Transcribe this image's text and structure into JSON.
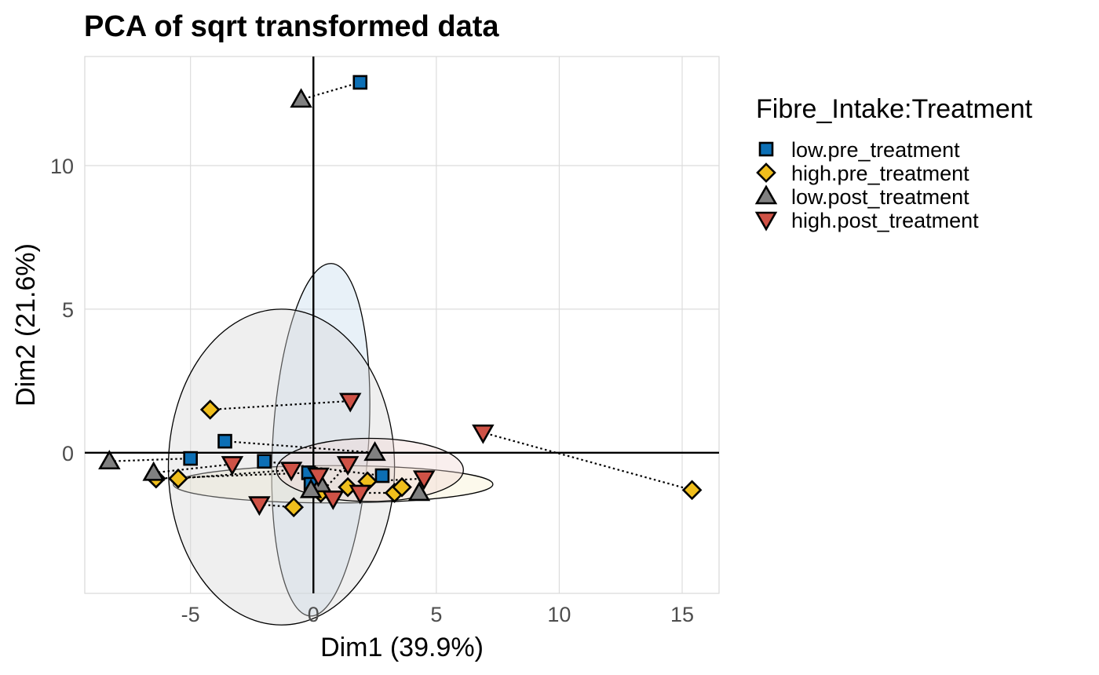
{
  "chart_data": {
    "type": "scatter",
    "title": "PCA of sqrt transformed data",
    "xlabel": "Dim1 (39.9%)",
    "ylabel": "Dim2 (21.6%)",
    "xlim": [
      -9.3,
      16.5
    ],
    "ylim": [
      -4.9,
      13.8
    ],
    "xticks": [
      -5,
      0,
      5,
      10,
      15
    ],
    "yticks": [
      0,
      5,
      10
    ],
    "xtick_labels": [
      "-5",
      "0",
      "5",
      "10",
      "15"
    ],
    "ytick_labels": [
      "0",
      "5",
      "10"
    ],
    "grid": true,
    "legend": {
      "title": "Fibre_Intake:Treatment",
      "position": "right"
    },
    "series": [
      {
        "name": "low.pre_treatment",
        "shape": "square",
        "color": "#0c6fb5",
        "ellipse": {
          "cx": 0.3,
          "cy": 0.45,
          "rx": 1.95,
          "ry": 6.15,
          "angle": 3.5
        },
        "points": [
          [
            1.9,
            12.9
          ],
          [
            -3.6,
            0.4
          ],
          [
            -5.0,
            -0.2
          ],
          [
            -2.0,
            -0.3
          ],
          [
            -0.2,
            -0.7
          ],
          [
            -0.1,
            -1.1
          ],
          [
            2.8,
            -0.8
          ]
        ]
      },
      {
        "name": "high.pre_treatment",
        "shape": "diamond",
        "color": "#f0be1c",
        "ellipse": {
          "cx": 0.8,
          "cy": -1.1,
          "rx": 6.5,
          "ry": 0.65,
          "angle": 0
        },
        "points": [
          [
            -4.2,
            1.5
          ],
          [
            -5.5,
            -0.9
          ],
          [
            -6.4,
            -0.9
          ],
          [
            -0.8,
            -1.9
          ],
          [
            0.3,
            -1.4
          ],
          [
            1.4,
            -1.2
          ],
          [
            2.2,
            -1.0
          ],
          [
            3.3,
            -1.4
          ],
          [
            3.6,
            -1.2
          ],
          [
            15.4,
            -1.3
          ]
        ]
      },
      {
        "name": "low.post_treatment",
        "shape": "triangle-up",
        "color": "#808080",
        "ellipse": {
          "cx": -1.3,
          "cy": -0.5,
          "rx": 4.6,
          "ry": 5.5,
          "angle": 0
        },
        "points": [
          [
            -0.5,
            12.3
          ],
          [
            -8.3,
            -0.3
          ],
          [
            -6.5,
            -0.7
          ],
          [
            2.5,
            0.0
          ],
          [
            0.3,
            -1.1
          ],
          [
            -0.1,
            -1.3
          ],
          [
            4.3,
            -1.4
          ]
        ]
      },
      {
        "name": "high.post_treatment",
        "shape": "triangle-down",
        "color": "#cf5246",
        "ellipse": {
          "cx": 2.3,
          "cy": -0.6,
          "rx": 3.8,
          "ry": 1.1,
          "angle": 0
        },
        "points": [
          [
            1.5,
            1.8
          ],
          [
            6.9,
            0.7
          ],
          [
            -3.3,
            -0.4
          ],
          [
            -0.9,
            -0.6
          ],
          [
            0.2,
            -0.8
          ],
          [
            1.4,
            -0.4
          ],
          [
            0.8,
            -1.6
          ],
          [
            1.9,
            -1.4
          ],
          [
            4.5,
            -0.9
          ],
          [
            -2.2,
            -1.8
          ]
        ]
      }
    ],
    "pairs": [
      [
        [
          1.9,
          12.9
        ],
        [
          -0.5,
          12.3
        ]
      ],
      [
        [
          15.4,
          -1.3
        ],
        [
          6.9,
          0.7
        ]
      ],
      [
        [
          -4.2,
          1.5
        ],
        [
          1.5,
          1.8
        ]
      ],
      [
        [
          -3.6,
          0.4
        ],
        [
          2.5,
          0.0
        ]
      ],
      [
        [
          -8.3,
          -0.3
        ],
        [
          -5.0,
          -0.2
        ]
      ],
      [
        [
          -6.4,
          -0.9
        ],
        [
          -0.2,
          -0.7
        ]
      ],
      [
        [
          -6.5,
          -0.7
        ],
        [
          -3.3,
          -0.4
        ]
      ],
      [
        [
          -5.5,
          -0.9
        ],
        [
          -0.9,
          -0.6
        ]
      ],
      [
        [
          -2.0,
          -0.3
        ],
        [
          2.8,
          -0.8
        ]
      ],
      [
        [
          -0.8,
          -1.9
        ],
        [
          -2.2,
          -1.8
        ]
      ],
      [
        [
          0.3,
          -1.4
        ],
        [
          1.4,
          -0.4
        ]
      ],
      [
        [
          1.4,
          -1.2
        ],
        [
          0.8,
          -1.6
        ]
      ],
      [
        [
          2.2,
          -1.0
        ],
        [
          4.5,
          -0.9
        ]
      ],
      [
        [
          3.3,
          -1.4
        ],
        [
          1.9,
          -1.4
        ]
      ]
    ]
  }
}
